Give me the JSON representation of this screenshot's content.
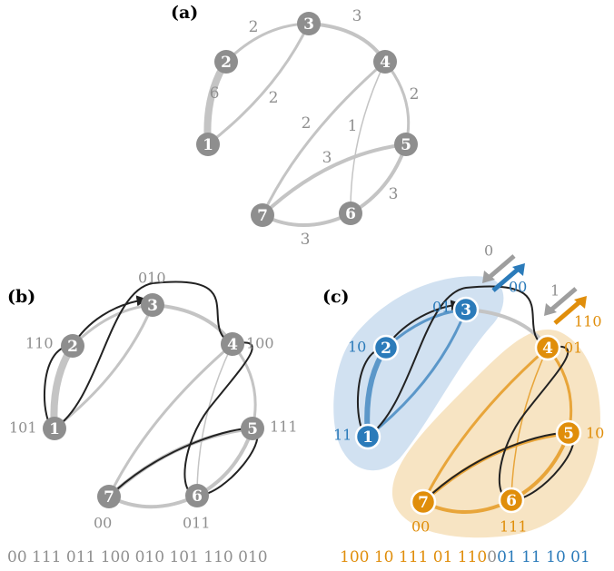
{
  "panels": {
    "a": {
      "label": "(a)"
    },
    "b": {
      "label": "(b)"
    },
    "c": {
      "label": "(c)"
    }
  },
  "colors": {
    "node_gray": "#8e8e8e",
    "edge_gray": "#c4c4c4",
    "text_gray": "#8f8f8f",
    "tour": "#222222",
    "blue": "#2b7bba",
    "blue_region": "#c9dcee",
    "orange": "#e08e0b",
    "orange_region": "#f6dfb8"
  },
  "nodes": [
    "1",
    "2",
    "3",
    "4",
    "5",
    "6",
    "7"
  ],
  "edges": [
    {
      "from": "1",
      "to": "2",
      "weight": "6"
    },
    {
      "from": "2",
      "to": "3",
      "weight": "2"
    },
    {
      "from": "1",
      "to": "3",
      "weight": "2"
    },
    {
      "from": "3",
      "to": "4",
      "weight": "3"
    },
    {
      "from": "4",
      "to": "5",
      "weight": "2"
    },
    {
      "from": "4",
      "to": "6",
      "weight": "1"
    },
    {
      "from": "4",
      "to": "7",
      "weight": "2"
    },
    {
      "from": "5",
      "to": "7",
      "weight": "3"
    },
    {
      "from": "5",
      "to": "6",
      "weight": "3"
    },
    {
      "from": "6",
      "to": "7",
      "weight": "3"
    }
  ],
  "codes_b": {
    "1": "101",
    "2": "110",
    "3": "010",
    "4": "100",
    "5": "111",
    "6": "011",
    "7": "00"
  },
  "codes_c": {
    "1": "11",
    "2": "10",
    "3": "01",
    "4": "01",
    "5": "10",
    "6": "111",
    "7": "00"
  },
  "arrows_c": {
    "blue_in": "0",
    "blue_out": "00",
    "orange_in": "1",
    "orange_out": "110"
  },
  "sequence_b": "00 111 011 100 010 101 110 010",
  "sequence_c": [
    {
      "text": "1",
      "color": "orange"
    },
    {
      "text": "00 10 111 01 110",
      "color": "orange"
    },
    {
      "text": "0",
      "color": "gray"
    },
    {
      "text": "01 11 10 01",
      "color": "blue"
    }
  ]
}
